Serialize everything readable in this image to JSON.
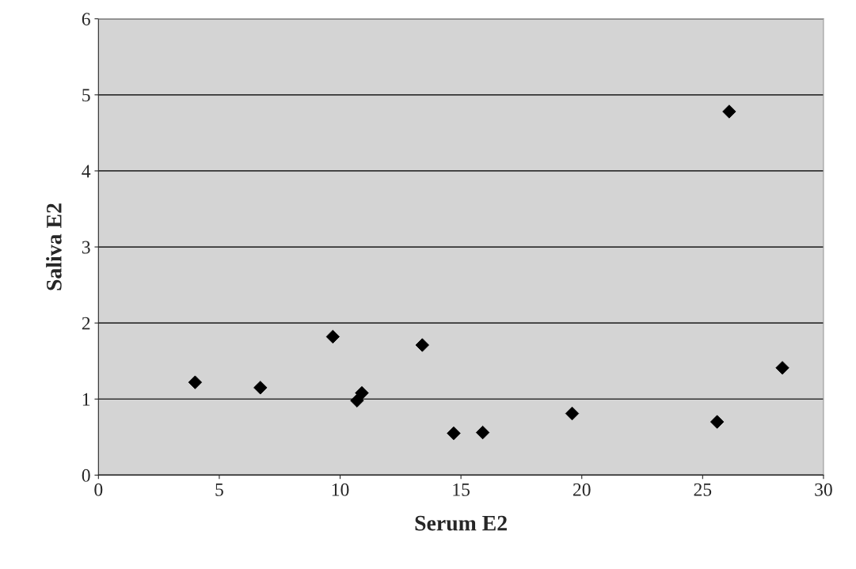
{
  "chart_data": {
    "type": "scatter",
    "xlabel": "Serum E2",
    "ylabel": "Saliva E2",
    "x": [
      4.0,
      6.7,
      9.7,
      10.7,
      10.9,
      13.4,
      14.7,
      15.9,
      19.6,
      25.6,
      26.1,
      28.3
    ],
    "series": [
      {
        "color": "#000000",
        "values": [
          1.22,
          1.15,
          1.82,
          0.98,
          1.08,
          1.71,
          0.55,
          0.56,
          0.81,
          0.7,
          4.78,
          1.41
        ]
      }
    ],
    "xlim": [
      0,
      30
    ],
    "xticks": [
      0,
      5,
      10,
      15,
      20,
      25,
      30
    ],
    "ylim": [
      0,
      6
    ],
    "yticks": [
      0,
      1,
      2,
      3,
      4,
      5,
      6
    ],
    "grid": "y",
    "marker": "diamond"
  }
}
